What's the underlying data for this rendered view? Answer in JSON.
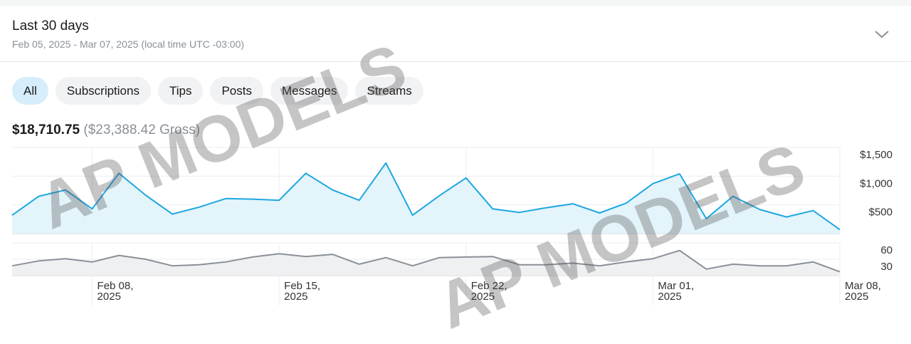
{
  "header": {
    "title": "Last 30 days",
    "subtitle": "Feb 05, 2025 - Mar 07, 2025 (local time UTC -03:00)"
  },
  "tabs": [
    "All",
    "Subscriptions",
    "Tips",
    "Posts",
    "Messages",
    "Streams"
  ],
  "totals": {
    "net": "$18,710.75",
    "gross": "($23,388.42 Gross)"
  },
  "watermark": "AP MODELS",
  "chart_data": [
    {
      "type": "line",
      "color": "#1ea7e0",
      "fill": "#e3f4fb",
      "x": [
        "2025-02-05",
        "2025-02-06",
        "2025-02-07",
        "2025-02-08",
        "2025-02-09",
        "2025-02-10",
        "2025-02-11",
        "2025-02-12",
        "2025-02-13",
        "2025-02-14",
        "2025-02-15",
        "2025-02-16",
        "2025-02-17",
        "2025-02-18",
        "2025-02-19",
        "2025-02-20",
        "2025-02-21",
        "2025-02-22",
        "2025-02-23",
        "2025-02-24",
        "2025-02-25",
        "2025-02-26",
        "2025-02-27",
        "2025-02-28",
        "2025-03-01",
        "2025-03-02",
        "2025-03-03",
        "2025-03-04",
        "2025-03-05",
        "2025-03-06",
        "2025-03-07",
        "2025-03-08"
      ],
      "values": [
        320,
        650,
        760,
        430,
        1050,
        670,
        340,
        460,
        610,
        600,
        580,
        1050,
        760,
        580,
        1230,
        320,
        660,
        970,
        430,
        370,
        450,
        520,
        360,
        530,
        870,
        1040,
        260,
        650,
        420,
        290,
        400,
        70
      ],
      "xlim": [
        "2025-02-05",
        "2025-03-08"
      ],
      "xticks": [
        "2025-02-08",
        "2025-02-15",
        "2025-02-22",
        "2025-03-01",
        "2025-03-08"
      ],
      "ylim": [
        0,
        1500
      ],
      "yticks": [
        {
          "value": 500,
          "label": "$500"
        },
        {
          "value": 1000,
          "label": "$1,000"
        },
        {
          "value": 1500,
          "label": "$1,500"
        }
      ],
      "grid": true
    },
    {
      "type": "line",
      "color": "#8a9099",
      "fill": "#eff0f2",
      "x": [
        "2025-02-05",
        "2025-02-06",
        "2025-02-07",
        "2025-02-08",
        "2025-02-09",
        "2025-02-10",
        "2025-02-11",
        "2025-02-12",
        "2025-02-13",
        "2025-02-14",
        "2025-02-15",
        "2025-02-16",
        "2025-02-17",
        "2025-02-18",
        "2025-02-19",
        "2025-02-20",
        "2025-02-21",
        "2025-02-22",
        "2025-02-23",
        "2025-02-24",
        "2025-02-25",
        "2025-02-26",
        "2025-02-27",
        "2025-02-28",
        "2025-03-01",
        "2025-03-02",
        "2025-03-03",
        "2025-03-04",
        "2025-03-05",
        "2025-03-06",
        "2025-03-07",
        "2025-03-08"
      ],
      "values": [
        18,
        27,
        31,
        25,
        37,
        30,
        18,
        20,
        25,
        34,
        40,
        35,
        39,
        21,
        33,
        18,
        33,
        34,
        35,
        20,
        20,
        23,
        18,
        25,
        31,
        46,
        12,
        21,
        18,
        18,
        25,
        7
      ],
      "xlim": [
        "2025-02-05",
        "2025-03-08"
      ],
      "xticks": [
        {
          "value": "2025-02-08",
          "label": "Feb 08, 2025"
        },
        {
          "value": "2025-02-15",
          "label": "Feb 15, 2025"
        },
        {
          "value": "2025-02-22",
          "label": "Feb 22, 2025"
        },
        {
          "value": "2025-03-01",
          "label": "Mar 01, 2025"
        },
        {
          "value": "2025-03-08",
          "label": "Mar 08, 2025"
        }
      ],
      "ylim": [
        0,
        60
      ],
      "yticks": [
        30,
        60
      ],
      "grid": true
    }
  ]
}
